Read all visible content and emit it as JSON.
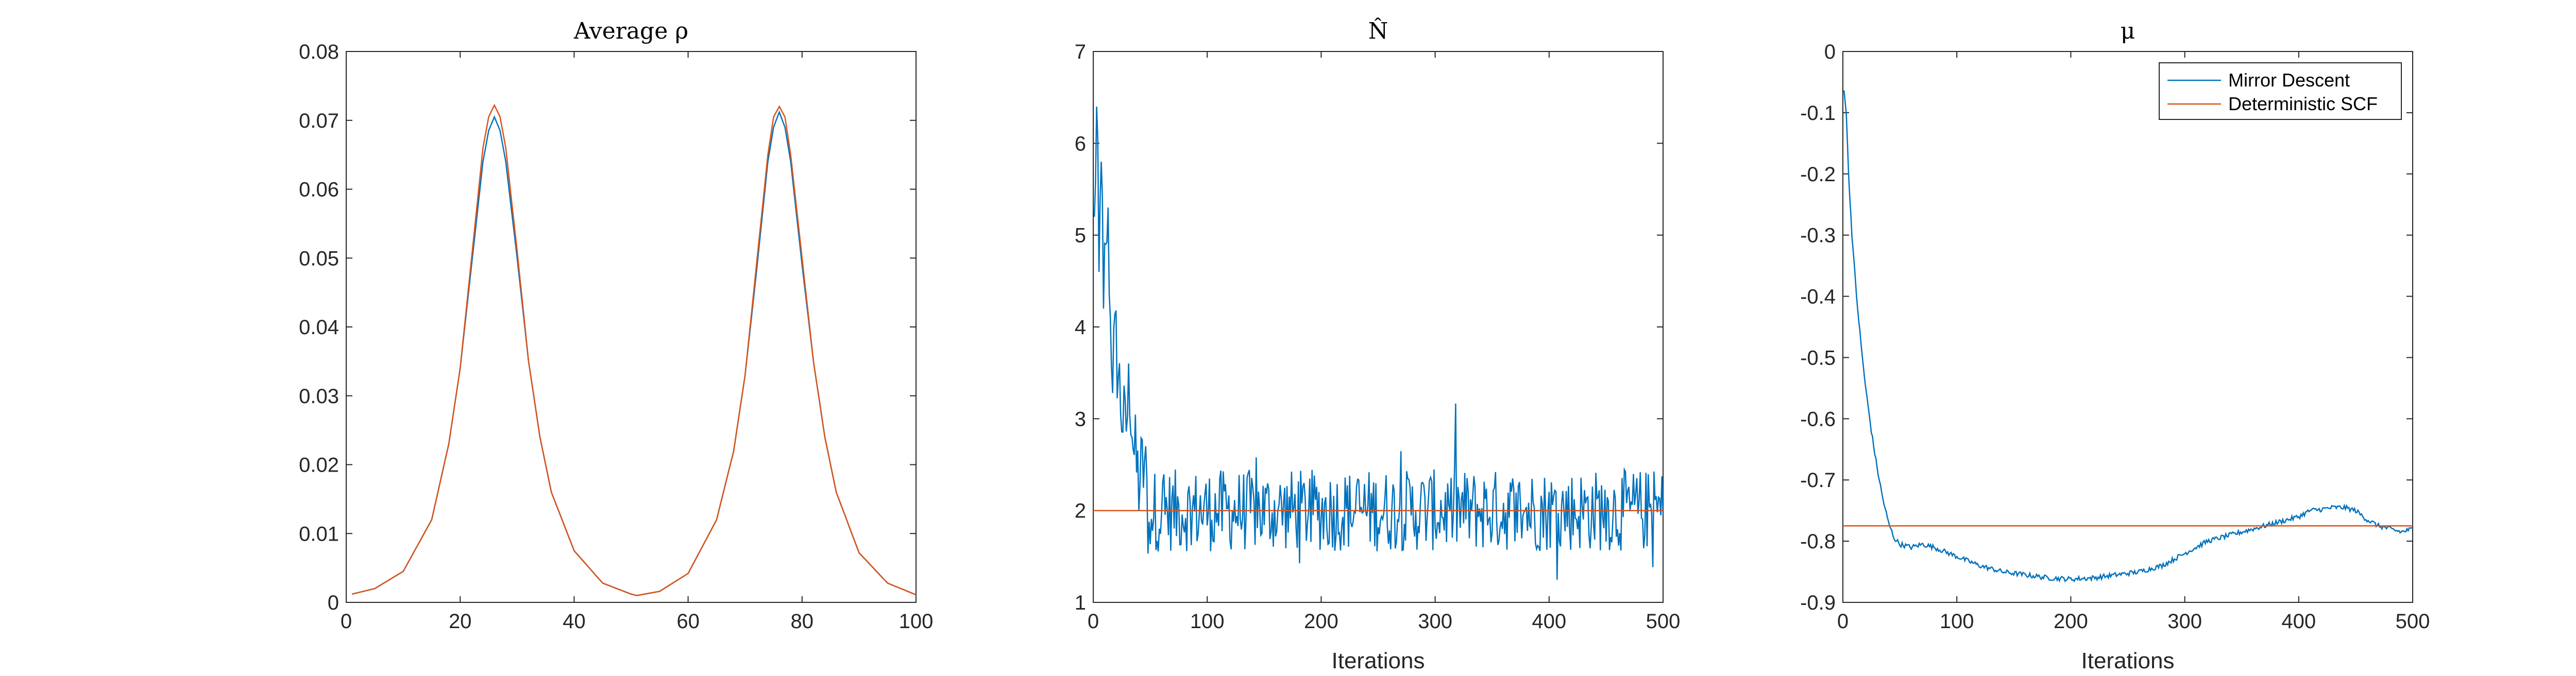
{
  "figure": {
    "background": "#ffffff",
    "axis_color": "#262626",
    "line_width_note": "thin lines"
  },
  "chart_data": [
    {
      "type": "line",
      "title": "Average ρ",
      "xlabel": "",
      "ylabel": "",
      "xlim": [
        0,
        100
      ],
      "ylim": [
        0,
        0.08
      ],
      "xticks": [
        0,
        20,
        40,
        60,
        80,
        100
      ],
      "xtick_labels": [
        "0",
        "20",
        "40",
        "60",
        "80",
        "100"
      ],
      "yticks": [
        0,
        0.01,
        0.02,
        0.03,
        0.04,
        0.05,
        0.06,
        0.07,
        0.08
      ],
      "ytick_labels": [
        "0",
        "0.01",
        "0.02",
        "0.03",
        "0.04",
        "0.05",
        "0.06",
        "0.07",
        "0.08"
      ],
      "grid": false,
      "series": [
        {
          "color": "#0072BD",
          "x": [
            1,
            5,
            10,
            15,
            18,
            20,
            22,
            24,
            25,
            26,
            27,
            28,
            30,
            32,
            34,
            36,
            40,
            45,
            50,
            51,
            55,
            60,
            65,
            68,
            70,
            72,
            74,
            75,
            76,
            77,
            78,
            80,
            82,
            84,
            86,
            90,
            95,
            100
          ],
          "y": [
            0.0012,
            0.002,
            0.0045,
            0.012,
            0.023,
            0.034,
            0.049,
            0.064,
            0.0685,
            0.0705,
            0.0685,
            0.064,
            0.05,
            0.035,
            0.024,
            0.016,
            0.0075,
            0.0028,
            0.0012,
            0.001,
            0.0016,
            0.0042,
            0.012,
            0.022,
            0.033,
            0.048,
            0.064,
            0.069,
            0.0712,
            0.069,
            0.064,
            0.049,
            0.035,
            0.024,
            0.016,
            0.0072,
            0.0028,
            0.0011
          ]
        },
        {
          "color": "#D95319",
          "x": [
            1,
            5,
            10,
            15,
            18,
            20,
            22,
            24,
            25,
            26,
            27,
            28,
            30,
            32,
            34,
            36,
            40,
            45,
            50,
            51,
            55,
            60,
            65,
            68,
            70,
            72,
            74,
            75,
            76,
            77,
            78,
            80,
            82,
            84,
            86,
            90,
            95,
            100
          ],
          "y": [
            0.0012,
            0.002,
            0.0045,
            0.012,
            0.023,
            0.034,
            0.05,
            0.066,
            0.0705,
            0.0722,
            0.0705,
            0.066,
            0.051,
            0.035,
            0.024,
            0.016,
            0.0075,
            0.0028,
            0.0012,
            0.001,
            0.0016,
            0.0042,
            0.012,
            0.022,
            0.033,
            0.049,
            0.065,
            0.0705,
            0.072,
            0.0705,
            0.065,
            0.05,
            0.035,
            0.024,
            0.016,
            0.0072,
            0.0028,
            0.0011
          ]
        }
      ]
    },
    {
      "type": "line",
      "title": "N̂",
      "xlabel": "Iterations",
      "ylabel": "",
      "xlim": [
        0,
        500
      ],
      "ylim": [
        1,
        7
      ],
      "xticks": [
        0,
        100,
        200,
        300,
        400,
        500
      ],
      "xtick_labels": [
        "0",
        "100",
        "200",
        "300",
        "400",
        "500"
      ],
      "yticks": [
        1,
        2,
        3,
        4,
        5,
        6,
        7
      ],
      "ytick_labels": [
        "1",
        "2",
        "3",
        "4",
        "5",
        "6",
        "7"
      ],
      "grid": false,
      "series": [
        {
          "color": "#0072BD",
          "noisy": true,
          "x": [
            1,
            3,
            5,
            7,
            9,
            11,
            13,
            15,
            17,
            20,
            24,
            28,
            32,
            36,
            40,
            45,
            50,
            60,
            70,
            80,
            90,
            100,
            120,
            140,
            160,
            180,
            200,
            220,
            240,
            260,
            280,
            300,
            320,
            340,
            360,
            380,
            400,
            420,
            440,
            450,
            460,
            480,
            490,
            495,
            498,
            500
          ],
          "y": [
            5.2,
            6.4,
            4.6,
            5.8,
            4.2,
            4.9,
            5.3,
            4.1,
            3.6,
            3.8,
            3.2,
            2.8,
            3.4,
            2.6,
            2.3,
            2.5,
            1.6,
            2.7,
            1.5,
            2.9,
            1.7,
            2.4,
            1.4,
            2.8,
            1.6,
            2.5,
            1.7,
            2.6,
            1.8,
            2.2,
            1.5,
            2.7,
            1.6,
            2.3,
            1.5,
            2.5,
            1.6,
            2.2,
            2.9,
            1.7,
            2.4,
            1.5,
            2.1,
            1.2,
            2.7,
            1.5
          ]
        },
        {
          "color": "#D95319",
          "x": [
            0,
            500
          ],
          "y": [
            2,
            2
          ]
        }
      ]
    },
    {
      "type": "line",
      "title": "μ",
      "xlabel": "Iterations",
      "ylabel": "",
      "xlim": [
        0,
        500
      ],
      "ylim": [
        -0.9,
        0
      ],
      "xticks": [
        0,
        100,
        200,
        300,
        400,
        500
      ],
      "xtick_labels": [
        "0",
        "100",
        "200",
        "300",
        "400",
        "500"
      ],
      "yticks": [
        -0.9,
        -0.8,
        -0.7,
        -0.6,
        -0.5,
        -0.4,
        -0.3,
        -0.2,
        -0.1,
        0
      ],
      "ytick_labels": [
        "-0.9",
        "-0.8",
        "-0.7",
        "-0.6",
        "-0.5",
        "-0.4",
        "-0.3",
        "-0.2",
        "-0.1",
        "0"
      ],
      "grid": false,
      "legend": {
        "placement": "top-right",
        "entries": [
          "Mirror Descent",
          "Deterministic SCF"
        ]
      },
      "series": [
        {
          "name": "Mirror Descent",
          "color": "#0072BD",
          "jitter": true,
          "x": [
            1,
            3,
            5,
            8,
            12,
            16,
            20,
            25,
            30,
            35,
            40,
            45,
            50,
            60,
            70,
            80,
            100,
            120,
            140,
            160,
            180,
            200,
            220,
            240,
            260,
            280,
            300,
            320,
            340,
            360,
            380,
            400,
            410,
            420,
            430,
            440,
            450,
            460,
            470,
            480,
            490,
            500
          ],
          "y": [
            -0.06,
            -0.1,
            -0.2,
            -0.3,
            -0.4,
            -0.48,
            -0.55,
            -0.62,
            -0.68,
            -0.73,
            -0.77,
            -0.795,
            -0.805,
            -0.81,
            -0.805,
            -0.81,
            -0.825,
            -0.84,
            -0.85,
            -0.855,
            -0.86,
            -0.862,
            -0.86,
            -0.855,
            -0.85,
            -0.84,
            -0.82,
            -0.8,
            -0.79,
            -0.78,
            -0.77,
            -0.76,
            -0.75,
            -0.748,
            -0.745,
            -0.745,
            -0.75,
            -0.765,
            -0.775,
            -0.78,
            -0.785,
            -0.78
          ]
        },
        {
          "name": "Deterministic SCF",
          "color": "#D95319",
          "x": [
            0,
            500
          ],
          "y": [
            -0.775,
            -0.775
          ]
        }
      ]
    }
  ]
}
